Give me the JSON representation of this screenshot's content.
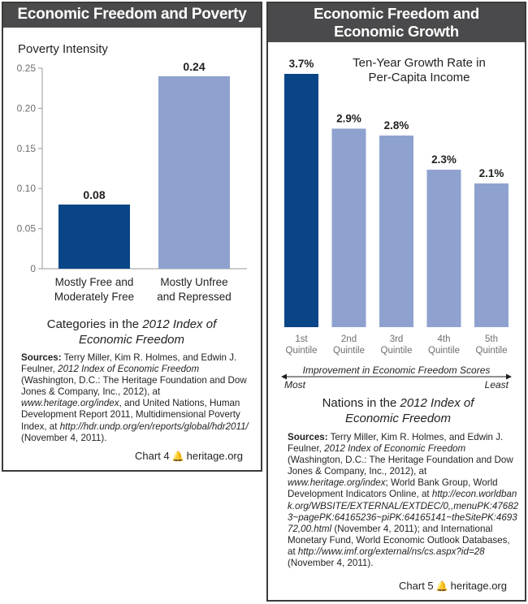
{
  "left": {
    "title": "Economic Freedom and Poverty",
    "sources": {
      "label": "Sources:",
      "t1": " Terry Miller, Kim R. Holmes, and Edwin J. Feulner, ",
      "i1": "2012 Index of Economic Freedom",
      "t2": " (Washington, D.C.: The Heritage Foundation and Dow Jones & Company, Inc., 2012), at ",
      "i2": "www.heritage.org/index",
      "t3": ", and United Nations, Human Development Report 2011, Multidimensional Poverty Index, at ",
      "i3": "http://hdr.undp.org/en/reports/global/hdr2011/",
      "t4": " (November 4, 2011)."
    },
    "chart_label": "Chart 4",
    "site": "heritage.org"
  },
  "right": {
    "title_line1": "Economic Freedom and",
    "title_line2": "Economic Growth",
    "sources": {
      "label": "Sources:",
      "t1": " Terry Miller, Kim R. Holmes, and Edwin J. Feulner, ",
      "i1": "2012 Index of Economic Freedom",
      "t2": " (Washington, D.C.: The Heritage Foundation and Dow Jones & Company, Inc., 2012), at ",
      "i2": "www.heritage.org/index",
      "t3": "; World Bank Group, World Development Indicators Online, at ",
      "i3": "http://econ.worldbank.org/WBSITE/EXTERNAL/EXTDEC/0,,menuPK:476823~pagePK:64165236~piPK:64165141~theSitePK:469372,00.html",
      "t4": " (November 4, 2011); and International Monetary Fund, World Economic Outlook Databases, at ",
      "i4": "http://www.imf.org/external/ns/cs.aspx?id=28",
      "t5": " (November 4, 2011)."
    },
    "chart_label": "Chart 5",
    "site": "heritage.org"
  },
  "colors": {
    "dark_blue": "#0a4687",
    "light_blue": "#8fa2cf",
    "header_gray": "#4a4a4c"
  },
  "chart_data": [
    {
      "type": "bar",
      "ylabel": "Poverty Intensity",
      "categories": [
        [
          "Mostly Free and",
          "Moderately Free"
        ],
        [
          "Mostly Unfree",
          "and Repressed"
        ]
      ],
      "values": [
        0.08,
        0.24
      ],
      "value_labels": [
        "0.08",
        "0.24"
      ],
      "colors": [
        "#0a4687",
        "#8fa2cf"
      ],
      "ylim": [
        0,
        0.25
      ],
      "yticks": [
        0,
        0.05,
        0.1,
        0.15,
        0.2,
        0.25
      ],
      "ytick_labels": [
        "0",
        "0.05",
        "0.10",
        "0.15",
        "0.20",
        "0.25"
      ],
      "xlabel_line1_plain": "Categories in the ",
      "xlabel_line1_italic": "2012 Index of",
      "xlabel_line2_italic": "Economic Freedom",
      "grid": false
    },
    {
      "type": "bar",
      "title_line1": "Ten-Year Growth Rate in",
      "title_line2": "Per-Capita Income",
      "categories": [
        [
          "1st",
          "Quintile"
        ],
        [
          "2nd",
          "Quintile"
        ],
        [
          "3rd",
          "Quintile"
        ],
        [
          "4th",
          "Quintile"
        ],
        [
          "5th",
          "Quintile"
        ]
      ],
      "values": [
        3.7,
        2.9,
        2.8,
        2.3,
        2.1
      ],
      "value_labels": [
        "3.7%",
        "2.9%",
        "2.8%",
        "2.3%",
        "2.1%"
      ],
      "colors": [
        "#0a4687",
        "#8fa2cf",
        "#8fa2cf",
        "#8fa2cf",
        "#8fa2cf"
      ],
      "ylim": [
        0,
        3.7
      ],
      "arrow_label": "Improvement in Economic Freedom Scores",
      "arrow_left": "Most",
      "arrow_right": "Least",
      "xlabel_line1_plain": "Nations in the ",
      "xlabel_line1_italic": "2012 Index of",
      "xlabel_line2_italic": "Economic Freedom",
      "grid": false
    }
  ]
}
